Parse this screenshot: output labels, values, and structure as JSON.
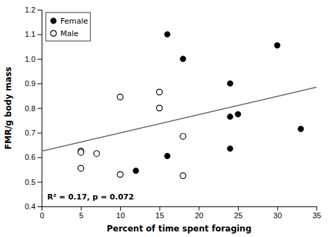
{
  "chart_data": {
    "type": "scatter",
    "x_label": "Percent of time spent foraging",
    "y_label": "FMR/g body mass",
    "annotation": "R² = 0.17, p = 0.072",
    "xlim": [
      0,
      35
    ],
    "ylim": [
      0.4,
      1.2
    ],
    "xticks": [
      0,
      5,
      10,
      15,
      20,
      25,
      30,
      35
    ],
    "yticks": [
      0.4,
      0.5,
      0.6,
      0.7,
      0.8,
      0.9,
      {
        "value": 1.0,
        "label": "1.0"
      },
      1.1,
      1.2
    ],
    "grid": false,
    "legend": "upper left",
    "series": [
      {
        "type": "line",
        "color": "#666666",
        "line_style": "solid",
        "x": [
          0,
          35
        ],
        "values": [
          0.625,
          0.885
        ]
      },
      {
        "name": "Female",
        "type": "scatter",
        "color": "#000000",
        "marker": "circle",
        "x": [
          16,
          18,
          12,
          24,
          25,
          24,
          24,
          30,
          16,
          33
        ],
        "values": [
          1.1,
          1.0,
          0.545,
          0.9,
          0.775,
          0.765,
          0.635,
          1.055,
          0.605,
          0.715
        ]
      },
      {
        "name": "Male",
        "type": "scatter",
        "color": "#000000",
        "marker": "circle-open",
        "x": [
          5,
          5,
          5,
          7,
          10,
          10,
          15,
          15,
          18,
          18
        ],
        "values": [
          0.625,
          0.62,
          0.555,
          0.615,
          0.845,
          0.53,
          0.865,
          0.8,
          0.685,
          0.525
        ]
      }
    ]
  }
}
